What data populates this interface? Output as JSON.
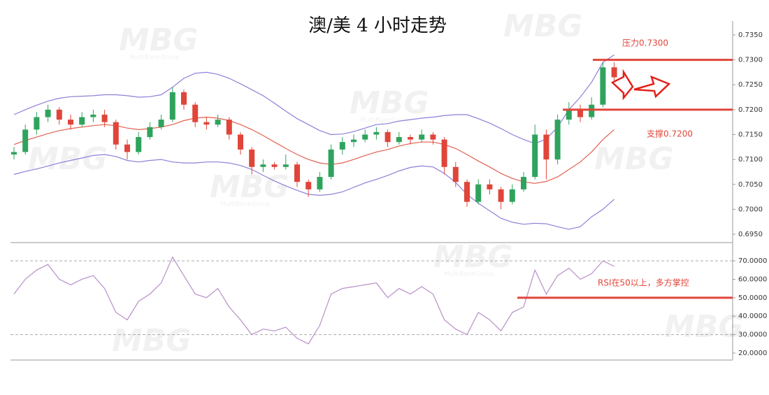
{
  "chart_data": [
    {
      "type": "candlestick",
      "title": "澳/美 4 小时走势",
      "watermark": "MBG",
      "watermark_sub": "MultiBankGroup",
      "up_color": "#2fa35d",
      "down_color": "#e0453a",
      "ohlc": [
        [
          0.711,
          0.7125,
          0.71,
          0.7115
        ],
        [
          0.7115,
          0.717,
          0.711,
          0.716
        ],
        [
          0.716,
          0.7195,
          0.715,
          0.7185
        ],
        [
          0.7185,
          0.721,
          0.7175,
          0.72
        ],
        [
          0.72,
          0.7205,
          0.717,
          0.718
        ],
        [
          0.718,
          0.719,
          0.716,
          0.717
        ],
        [
          0.717,
          0.7195,
          0.7165,
          0.7185
        ],
        [
          0.7185,
          0.72,
          0.7175,
          0.719
        ],
        [
          0.719,
          0.72,
          0.7165,
          0.7175
        ],
        [
          0.7175,
          0.718,
          0.712,
          0.713
        ],
        [
          0.713,
          0.714,
          0.71,
          0.7115
        ],
        [
          0.7115,
          0.7155,
          0.711,
          0.7145
        ],
        [
          0.7145,
          0.7175,
          0.714,
          0.7165
        ],
        [
          0.7165,
          0.719,
          0.716,
          0.718
        ],
        [
          0.718,
          0.7245,
          0.7175,
          0.7235
        ],
        [
          0.7235,
          0.724,
          0.72,
          0.721
        ],
        [
          0.721,
          0.7215,
          0.7165,
          0.7175
        ],
        [
          0.7175,
          0.7185,
          0.716,
          0.717
        ],
        [
          0.717,
          0.719,
          0.7165,
          0.718
        ],
        [
          0.718,
          0.7185,
          0.714,
          0.715
        ],
        [
          0.715,
          0.7155,
          0.711,
          0.712
        ],
        [
          0.712,
          0.7125,
          0.707,
          0.7085
        ],
        [
          0.7085,
          0.71,
          0.7075,
          0.709
        ],
        [
          0.709,
          0.7095,
          0.708,
          0.7085
        ],
        [
          0.7085,
          0.711,
          0.708,
          0.709
        ],
        [
          0.709,
          0.7095,
          0.7045,
          0.7055
        ],
        [
          0.7055,
          0.706,
          0.7025,
          0.704
        ],
        [
          0.704,
          0.7075,
          0.7035,
          0.7065
        ],
        [
          0.7065,
          0.713,
          0.706,
          0.712
        ],
        [
          0.712,
          0.7145,
          0.711,
          0.7135
        ],
        [
          0.7135,
          0.715,
          0.7125,
          0.714
        ],
        [
          0.714,
          0.716,
          0.7135,
          0.715
        ],
        [
          0.715,
          0.7165,
          0.714,
          0.7155
        ],
        [
          0.7155,
          0.716,
          0.7125,
          0.7135
        ],
        [
          0.7135,
          0.7155,
          0.713,
          0.7145
        ],
        [
          0.7145,
          0.715,
          0.713,
          0.714
        ],
        [
          0.714,
          0.716,
          0.7135,
          0.715
        ],
        [
          0.715,
          0.7155,
          0.713,
          0.714
        ],
        [
          0.714,
          0.7145,
          0.707,
          0.7085
        ],
        [
          0.7085,
          0.7095,
          0.7045,
          0.7055
        ],
        [
          0.7055,
          0.706,
          0.7005,
          0.7015
        ],
        [
          0.7015,
          0.706,
          0.701,
          0.705
        ],
        [
          0.705,
          0.706,
          0.703,
          0.704
        ],
        [
          0.704,
          0.7045,
          0.7,
          0.7015
        ],
        [
          0.7015,
          0.705,
          0.701,
          0.704
        ],
        [
          0.704,
          0.7075,
          0.7035,
          0.7065
        ],
        [
          0.7065,
          0.717,
          0.706,
          0.715
        ],
        [
          0.715,
          0.716,
          0.706,
          0.71
        ],
        [
          0.71,
          0.719,
          0.709,
          0.718
        ],
        [
          0.718,
          0.7215,
          0.717,
          0.72
        ],
        [
          0.72,
          0.721,
          0.7175,
          0.7185
        ],
        [
          0.7185,
          0.7225,
          0.718,
          0.721
        ],
        [
          0.721,
          0.7295,
          0.7205,
          0.7285
        ],
        [
          0.7285,
          0.7295,
          0.7255,
          0.7265
        ]
      ],
      "overlays": [
        {
          "color": "#8c80d8",
          "values": [
            0.719,
            0.72,
            0.7209,
            0.7217,
            0.7223,
            0.7226,
            0.7227,
            0.7228,
            0.723,
            0.723,
            0.7228,
            0.7225,
            0.7226,
            0.723,
            0.7245,
            0.7263,
            0.7273,
            0.7275,
            0.7271,
            0.7263,
            0.7252,
            0.724,
            0.7228,
            0.7213,
            0.7197,
            0.7182,
            0.717,
            0.7158,
            0.715,
            0.7151,
            0.7156,
            0.7163,
            0.717,
            0.7172,
            0.7177,
            0.718,
            0.7183,
            0.7185,
            0.7188,
            0.719,
            0.719,
            0.7182,
            0.7173,
            0.7162,
            0.715,
            0.714,
            0.7132,
            0.7141,
            0.7165,
            0.72,
            0.7225,
            0.7255,
            0.7295,
            0.731
          ]
        },
        {
          "color": "#e2604f",
          "values": [
            0.713,
            0.7138,
            0.7145,
            0.7152,
            0.7158,
            0.7162,
            0.7165,
            0.7168,
            0.717,
            0.7168,
            0.7163,
            0.716,
            0.7162,
            0.7165,
            0.717,
            0.7178,
            0.7183,
            0.7185,
            0.7183,
            0.7178,
            0.717,
            0.716,
            0.7148,
            0.7135,
            0.7122,
            0.711,
            0.71,
            0.7093,
            0.709,
            0.7093,
            0.71,
            0.7108,
            0.7115,
            0.712,
            0.7127,
            0.7132,
            0.7135,
            0.7135,
            0.713,
            0.7122,
            0.711,
            0.7097,
            0.7085,
            0.7072,
            0.7062,
            0.7055,
            0.7052,
            0.7056,
            0.7065,
            0.708,
            0.7095,
            0.7115,
            0.714,
            0.716
          ]
        },
        {
          "color": "#8c80d8",
          "values": [
            0.707,
            0.7076,
            0.7081,
            0.7087,
            0.7093,
            0.7098,
            0.7103,
            0.7108,
            0.711,
            0.7106,
            0.7098,
            0.7095,
            0.7098,
            0.71,
            0.7095,
            0.7093,
            0.7093,
            0.7095,
            0.7095,
            0.7093,
            0.7088,
            0.708,
            0.7068,
            0.7057,
            0.7047,
            0.7038,
            0.703,
            0.7028,
            0.703,
            0.7035,
            0.7044,
            0.7053,
            0.706,
            0.7068,
            0.7077,
            0.7084,
            0.7087,
            0.7085,
            0.7072,
            0.7054,
            0.703,
            0.7012,
            0.6997,
            0.6982,
            0.6974,
            0.697,
            0.6972,
            0.6971,
            0.6965,
            0.696,
            0.6965,
            0.6985,
            0.7,
            0.702
          ]
        }
      ],
      "levels": [
        {
          "label": "压力0.7300",
          "value": 0.73,
          "color": "#e0453a"
        },
        {
          "label": "支撑0.7200",
          "value": 0.72,
          "color": "#e0453a"
        }
      ],
      "ylim": [
        0.6936,
        0.7378
      ],
      "yticks": [
        {
          "value": 0.695,
          "label": "0.6950"
        },
        {
          "value": 0.7,
          "label": "0.7000"
        },
        {
          "value": 0.705,
          "label": "0.7050"
        },
        {
          "value": 0.71,
          "label": "0.7100"
        },
        {
          "value": 0.715,
          "label": "0.7150"
        },
        {
          "value": 0.72,
          "label": "0.7200"
        },
        {
          "value": 0.725,
          "label": "0.7250"
        },
        {
          "value": 0.73,
          "label": "0.7300"
        },
        {
          "value": 0.735,
          "label": "0.7350"
        }
      ]
    },
    {
      "type": "line",
      "series": [
        {
          "color": "#b88fc8",
          "values": [
            52,
            60,
            65,
            68,
            60,
            57,
            60,
            62,
            55,
            42,
            38,
            48,
            52,
            58,
            72,
            62,
            52,
            50,
            55,
            45,
            38,
            30,
            33,
            32,
            34,
            28,
            25,
            35,
            52,
            55,
            56,
            57,
            58,
            50,
            55,
            52,
            56,
            52,
            38,
            33,
            30,
            42,
            38,
            32,
            42,
            45,
            65,
            52,
            62,
            66,
            60,
            63,
            70,
            67
          ]
        }
      ],
      "dashed_levels": [
        30,
        70
      ],
      "levels": [
        {
          "label": "RSI在50以上，多方掌控",
          "value": 50,
          "color": "#e0453a"
        }
      ],
      "ylim": [
        16.2,
        79.5
      ],
      "yticks": [
        {
          "value": 20,
          "label": "20.0000"
        },
        {
          "value": 30,
          "label": "30.0000"
        },
        {
          "value": 40,
          "label": "40.0000"
        },
        {
          "value": 50,
          "label": "50.0000"
        },
        {
          "value": 60,
          "label": "60.0000"
        },
        {
          "value": 70,
          "label": "70.0000"
        }
      ]
    }
  ]
}
